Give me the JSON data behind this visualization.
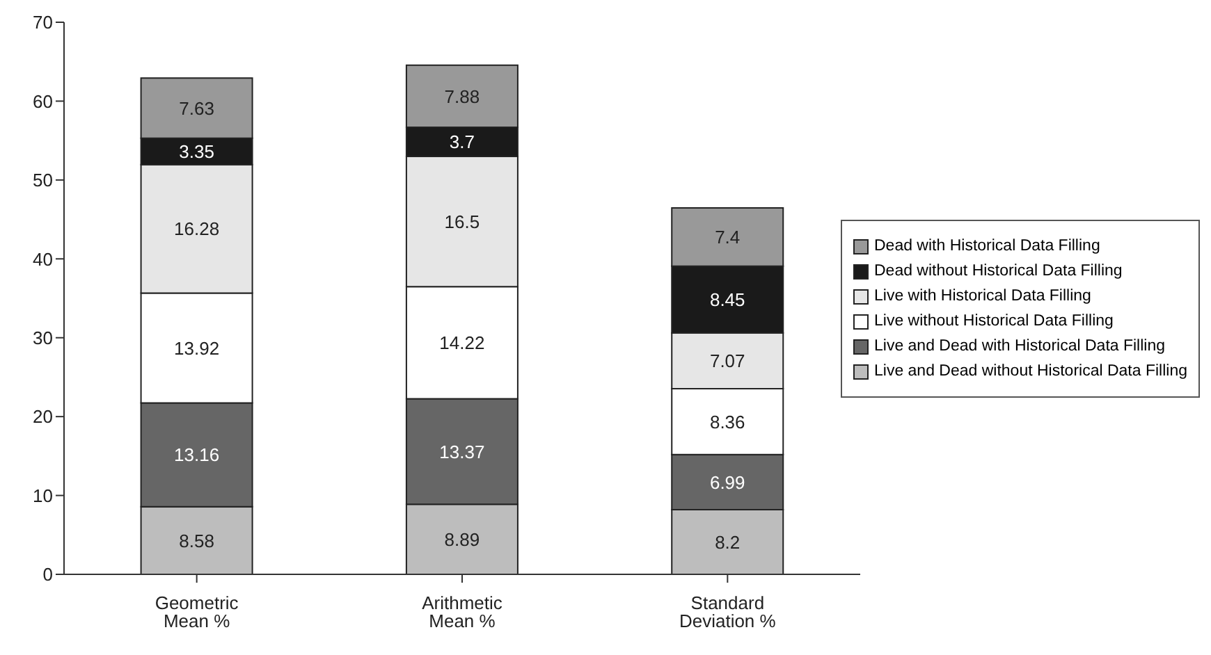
{
  "chart_data": {
    "type": "bar",
    "stacked": true,
    "categories": [
      "Geometric Mean %",
      "Arithmetic Mean %",
      "Standard Deviation %"
    ],
    "series": [
      {
        "name": "Live and Dead without Historical Data Filling",
        "color": "#bdbdbd",
        "values": [
          8.58,
          8.89,
          8.2
        ]
      },
      {
        "name": "Live and Dead with Historical Data Filling",
        "color": "#666666",
        "values": [
          13.16,
          13.37,
          6.99
        ]
      },
      {
        "name": "Live without Historical Data Filling",
        "color": "#ffffff",
        "values": [
          13.92,
          14.22,
          8.36
        ]
      },
      {
        "name": "Live with Historical Data Filling",
        "color": "#e6e6e6",
        "values": [
          16.28,
          16.5,
          7.07
        ]
      },
      {
        "name": "Dead without Historical Data Filling",
        "color": "#1a1a1a",
        "values": [
          3.35,
          3.7,
          8.45
        ]
      },
      {
        "name": "Dead with Historical Data Filling",
        "color": "#999999",
        "values": [
          7.63,
          7.88,
          7.4
        ]
      }
    ],
    "ylim": [
      0,
      70
    ],
    "yticks": [
      0,
      10,
      20,
      30,
      40,
      50,
      60,
      70
    ],
    "data_labels": true,
    "legend": "right",
    "grid": false
  }
}
